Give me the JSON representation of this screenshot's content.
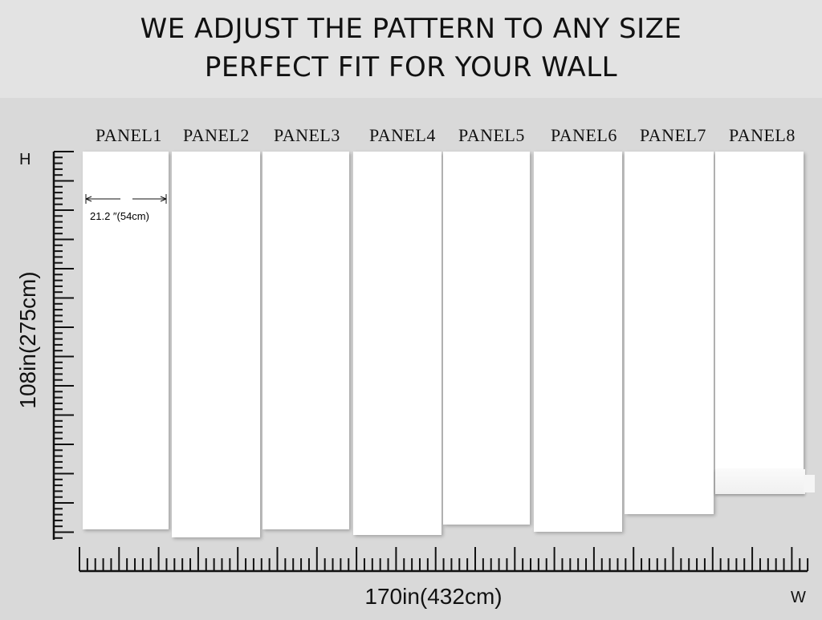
{
  "heading": {
    "line1": "WE ADJUST THE PATTERN TO ANY SIZE",
    "line2": "PERFECT FIT FOR YOUR WALL"
  },
  "panels": [
    "PANEL1",
    "PANEL2",
    "PANEL3",
    "PANEL4",
    "PANEL5",
    "PANEL6",
    "PANEL7",
    "PANEL8"
  ],
  "panel_width_label": "21.2  ″(54cm)",
  "height_axis": {
    "letter": "H",
    "dimension": "108in(275cm)"
  },
  "width_axis": {
    "letter": "W",
    "dimension": "170in(432cm)"
  },
  "colors": {
    "background": "#d9d9d9",
    "panel": "#ffffff"
  }
}
